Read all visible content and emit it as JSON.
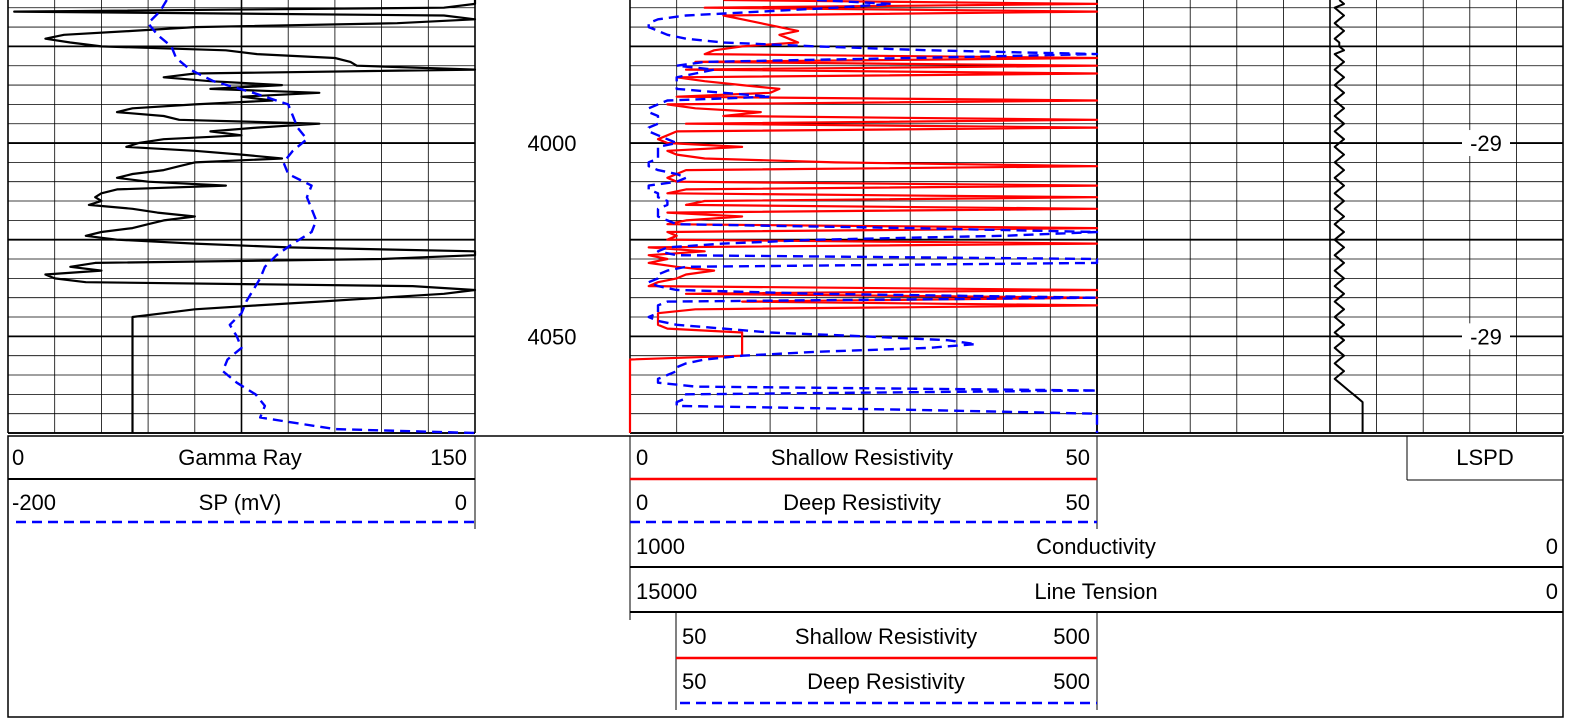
{
  "colors": {
    "shallow": "#ff0000",
    "deep": "#0000ff",
    "gamma": "#000000",
    "sp": "#0000ff",
    "grid": "#000000",
    "background": "#ffffff"
  },
  "depth_labels": [
    "4000",
    "4050"
  ],
  "track3_labels": [
    "-29",
    "-29"
  ],
  "headers": {
    "gamma": {
      "min": "0",
      "name": "Gamma Ray",
      "max": "150"
    },
    "sp": {
      "min": "-200",
      "name": "SP (mV)",
      "max": "0"
    },
    "shallow": {
      "min": "0",
      "name": "Shallow Resistivity",
      "max": "50"
    },
    "deep": {
      "min": "0",
      "name": "Deep Resistivity",
      "max": "50"
    },
    "lspd": {
      "name": "LSPD"
    },
    "conductivity": {
      "min": "1000",
      "name": "Conductivity",
      "max": "0"
    },
    "tension": {
      "min": "15000",
      "name": "Line Tension",
      "max": "0"
    },
    "shallow_ext": {
      "min": "50",
      "name": "Shallow Resistivity",
      "max": "500"
    },
    "deep_ext": {
      "min": "50",
      "name": "Deep Resistivity",
      "max": "500"
    }
  },
  "chart_data": {
    "type": "line",
    "depth_range": [
      3963,
      4075
    ],
    "tracks": [
      {
        "name": "track1",
        "x_range": [
          0,
          150
        ],
        "series": [
          "Gamma Ray",
          "SP (mV)"
        ]
      },
      {
        "name": "track2",
        "x_range": [
          0,
          50
        ],
        "series": [
          "Shallow Resistivity",
          "Deep Resistivity"
        ],
        "backup_range": [
          50,
          500
        ]
      },
      {
        "name": "track3",
        "series": [
          "LSPD",
          "Conductivity",
          "Line Tension"
        ]
      }
    ],
    "series": [
      {
        "name": "Gamma Ray",
        "x_range": [
          0,
          150
        ],
        "depth": [
          3963,
          3964,
          3965,
          3966,
          3967,
          3968,
          3969,
          3970,
          3971,
          3972,
          3973,
          3974,
          3975,
          3976,
          3977,
          3978,
          3979,
          3980,
          3981,
          3982,
          3983,
          3984,
          3985,
          3986,
          3987,
          3988,
          3989,
          3990,
          3991,
          3992,
          3993,
          3994,
          3995,
          3996,
          3997,
          3998,
          3999,
          4000,
          4001,
          4002,
          4003,
          4004,
          4005,
          4006,
          4007,
          4008,
          4009,
          4010,
          4011,
          4012,
          4013,
          4014,
          4015,
          4016,
          4017,
          4018,
          4019,
          4020,
          4021,
          4022,
          4023,
          4024,
          4025,
          4026,
          4027,
          4028,
          4029,
          4030,
          4031,
          4032,
          4033,
          4034,
          4035,
          4036,
          4037,
          4038,
          4039,
          4040,
          4041,
          4042,
          4043,
          4044,
          4045,
          4046,
          4047,
          4048,
          4049,
          4050,
          4051,
          4052,
          4053,
          4054,
          4055,
          4056,
          4057,
          4058,
          4059,
          4060,
          4061,
          4062,
          4063,
          4064,
          4065,
          4066,
          4067,
          4068,
          4069,
          4070,
          4071,
          4072,
          4073,
          4074,
          4075
        ],
        "values": [
          150,
          150,
          140,
          2,
          140,
          150,
          125,
          60,
          40,
          18,
          12,
          20,
          30,
          70,
          80,
          105,
          110,
          112,
          150,
          60,
          50,
          65,
          88,
          65,
          100,
          75,
          85,
          60,
          40,
          35,
          50,
          55,
          100,
          80,
          65,
          75,
          50,
          42,
          38,
          60,
          75,
          88,
          60,
          55,
          50,
          40,
          35,
          45,
          70,
          35,
          30,
          28,
          30,
          26,
          40,
          48,
          60,
          50,
          45,
          40,
          30,
          25,
          35,
          60,
          90,
          150,
          150,
          120,
          28,
          20,
          30,
          12,
          15,
          25,
          130,
          150,
          140,
          120,
          100,
          80,
          60,
          50,
          40,
          40,
          40,
          40,
          40,
          40,
          40,
          40,
          40,
          40,
          40,
          40,
          40,
          40,
          40,
          40,
          40,
          40,
          40,
          40,
          40,
          40,
          40,
          40,
          40,
          40,
          40,
          40,
          40,
          40,
          40
        ]
      },
      {
        "name": "SP (mV)",
        "x_range": [
          -200,
          0
        ],
        "depth": [
          3963,
          3966,
          3969,
          3972,
          3975,
          3978,
          3981,
          3984,
          3987,
          3990,
          3993,
          3996,
          3999,
          4002,
          4005,
          4008,
          4011,
          4014,
          4017,
          4020,
          4023,
          4026,
          4029,
          4032,
          4035,
          4038,
          4041,
          4044,
          4047,
          4050,
          4053,
          4056,
          4059,
          4062,
          4065,
          4068,
          4071,
          4074,
          4075
        ],
        "values": [
          -132,
          -135,
          -140,
          -136,
          -130,
          -128,
          -122,
          -112,
          -95,
          -80,
          -78,
          -76,
          -72,
          -78,
          -82,
          -80,
          -70,
          -72,
          -70,
          -68,
          -70,
          -78,
          -85,
          -90,
          -92,
          -95,
          -98,
          -100,
          -105,
          -102,
          -100,
          -106,
          -108,
          -102,
          -94,
          -90,
          -92,
          -60,
          0
        ]
      },
      {
        "name": "Shallow Resistivity",
        "x_range": [
          0,
          50
        ],
        "depth": [
          3963,
          3964,
          3965,
          3966,
          3967,
          3968,
          3969,
          3970,
          3971,
          3972,
          3973,
          3974,
          3975,
          3976,
          3977,
          3978,
          3979,
          3980,
          3981,
          3982,
          3983,
          3984,
          3985,
          3986,
          3987,
          3988,
          3989,
          3990,
          3991,
          3992,
          3993,
          3994,
          3995,
          3996,
          3997,
          3998,
          3999,
          4000,
          4001,
          4002,
          4003,
          4004,
          4005,
          4006,
          4007,
          4008,
          4009,
          4010,
          4011,
          4012,
          4013,
          4014,
          4015,
          4016,
          4017,
          4018,
          4019,
          4020,
          4021,
          4022,
          4023,
          4024,
          4025,
          4026,
          4027,
          4028,
          4029,
          4030,
          4031,
          4032,
          4033,
          4034,
          4035,
          4036,
          4037,
          4038,
          4039,
          4040,
          4041,
          4042,
          4043,
          4044,
          4045,
          4046,
          4047,
          4048,
          4049,
          4050,
          4051,
          4052,
          4053,
          4054,
          4055,
          4056,
          4057,
          4058,
          4059,
          4060,
          4061,
          4062,
          4063,
          4064,
          4065,
          4066,
          4067,
          4068,
          4069,
          4070,
          4071,
          4072,
          4073,
          4074,
          4075
        ],
        "values": [
          10,
          50,
          8,
          50,
          10,
          12,
          14,
          16,
          18,
          16,
          17,
          18,
          12,
          9,
          8,
          50,
          7,
          50,
          6,
          50,
          5,
          8,
          12,
          16,
          15,
          5,
          50,
          4,
          7,
          14,
          10,
          50,
          6,
          50,
          5,
          4,
          3,
          4,
          12,
          4,
          5,
          8,
          22,
          50,
          6,
          5,
          4,
          5,
          50,
          6,
          4,
          50,
          8,
          6,
          50,
          4,
          12,
          6,
          4,
          50,
          4,
          5,
          4,
          50,
          2,
          8,
          2,
          4,
          2,
          5,
          9,
          6,
          5,
          3,
          2,
          50,
          6,
          50,
          12,
          50,
          7,
          3,
          3,
          3,
          3,
          4,
          12,
          12,
          12,
          12,
          12,
          12,
          12,
          0,
          0,
          0,
          0,
          0,
          0,
          0,
          0,
          0,
          0,
          0,
          0,
          0,
          0,
          0,
          0,
          0,
          0,
          0,
          0
        ]
      },
      {
        "name": "Deep Resistivity",
        "x_range": [
          0,
          50
        ],
        "depth": [
          3963,
          3964,
          3965,
          3966,
          3967,
          3968,
          3969,
          3970,
          3971,
          3972,
          3973,
          3974,
          3975,
          3976,
          3977,
          3978,
          3979,
          3980,
          3981,
          3982,
          3983,
          3984,
          3985,
          3986,
          3987,
          3988,
          3989,
          3990,
          3991,
          3992,
          3993,
          3994,
          3995,
          3996,
          3997,
          3998,
          3999,
          4000,
          4001,
          4002,
          4003,
          4004,
          4005,
          4006,
          4007,
          4008,
          4009,
          4010,
          4011,
          4012,
          4013,
          4014,
          4015,
          4016,
          4017,
          4018,
          4019,
          4020,
          4021,
          4022,
          4023,
          4024,
          4025,
          4026,
          4027,
          4028,
          4029,
          4030,
          4031,
          4032,
          4033,
          4034,
          4035,
          4036,
          4037,
          4038,
          4039,
          4040,
          4041,
          4042,
          4043,
          4044,
          4045,
          4046,
          4047,
          4048,
          4049,
          4050,
          4051,
          4052,
          4053,
          4054,
          4055,
          4056,
          4057,
          4058,
          4059,
          4060,
          4061,
          4062,
          4063,
          4064,
          4065,
          4066,
          4067,
          4068,
          4069,
          4070,
          4071,
          4072,
          4073,
          4074,
          4075
        ],
        "values": [
          20,
          28,
          22,
          14,
          6,
          3,
          2,
          2,
          3,
          4,
          6,
          10,
          20,
          32,
          50,
          30,
          8,
          5,
          9,
          7,
          5,
          5,
          5,
          5,
          10,
          15,
          4,
          3,
          2,
          2,
          3,
          3,
          3,
          2,
          2,
          3,
          4,
          5,
          3,
          3,
          3,
          3,
          2,
          2,
          3,
          5,
          6,
          5,
          2,
          2,
          3,
          3,
          4,
          4,
          3,
          3,
          3,
          4,
          5,
          30,
          50,
          40,
          20,
          10,
          4,
          3,
          5,
          50,
          50,
          6,
          4,
          3,
          3,
          2,
          3,
          5,
          20,
          50,
          4,
          3,
          3,
          3,
          2,
          3,
          5,
          10,
          15,
          25,
          34,
          37,
          32,
          20,
          12,
          8,
          6,
          5,
          5,
          4,
          3,
          3,
          7,
          50,
          6,
          6,
          5,
          5,
          30,
          50,
          50,
          50,
          50,
          50,
          50
        ]
      },
      {
        "name": "LSPD",
        "depth": [
          3963,
          3964,
          3965,
          3966,
          3967,
          3968,
          3969,
          3970,
          3971,
          3972,
          3973,
          3974,
          3975,
          3976,
          3977,
          3978,
          3979,
          3980,
          3981,
          3982,
          3983,
          3984,
          3985,
          3986,
          3987,
          3988,
          3989,
          3990,
          3991,
          3992,
          3993,
          3994,
          3995,
          3996,
          3997,
          3998,
          3999,
          4000,
          4001,
          4002,
          4003,
          4004,
          4005,
          4006,
          4007,
          4008,
          4009,
          4010,
          4011,
          4012,
          4013,
          4014,
          4015,
          4016,
          4017,
          4018,
          4019,
          4020,
          4021,
          4022,
          4023,
          4024,
          4025,
          4026,
          4027,
          4028,
          4029,
          4030,
          4031,
          4032,
          4033,
          4034,
          4035,
          4036,
          4037,
          4038,
          4039,
          4040,
          4041,
          4042,
          4043,
          4044,
          4045,
          4046,
          4047,
          4048,
          4049,
          4050,
          4051,
          4052,
          4053,
          4054,
          4055,
          4056,
          4057,
          4058,
          4059,
          4060,
          4061,
          4062,
          4063,
          4064,
          4065,
          4066,
          4067,
          4068,
          4069,
          4070,
          4071,
          4072,
          4073,
          4074,
          4075
        ],
        "values": [
          52,
          53,
          51,
          52,
          53,
          52,
          51,
          52,
          53,
          52,
          51,
          52,
          52,
          53,
          51,
          52,
          53,
          52,
          51,
          52,
          53,
          52,
          51,
          52,
          53,
          52,
          51,
          52,
          53,
          52,
          51,
          52,
          53,
          52,
          51,
          52,
          53,
          52,
          51,
          52,
          53,
          52,
          51,
          52,
          53,
          52,
          51,
          52,
          53,
          52,
          51,
          52,
          53,
          52,
          51,
          52,
          53,
          52,
          51,
          52,
          53,
          52,
          51,
          52,
          53,
          52,
          51,
          52,
          53,
          52,
          51,
          52,
          53,
          52,
          51,
          52,
          53,
          52,
          51,
          52,
          53,
          52,
          51,
          52,
          53,
          52,
          51,
          52,
          53,
          52,
          51,
          52,
          53,
          52,
          51,
          52,
          53,
          52,
          51,
          52,
          53,
          54,
          55,
          56,
          57,
          57,
          57,
          57,
          57,
          57,
          57,
          57,
          57
        ]
      }
    ]
  }
}
